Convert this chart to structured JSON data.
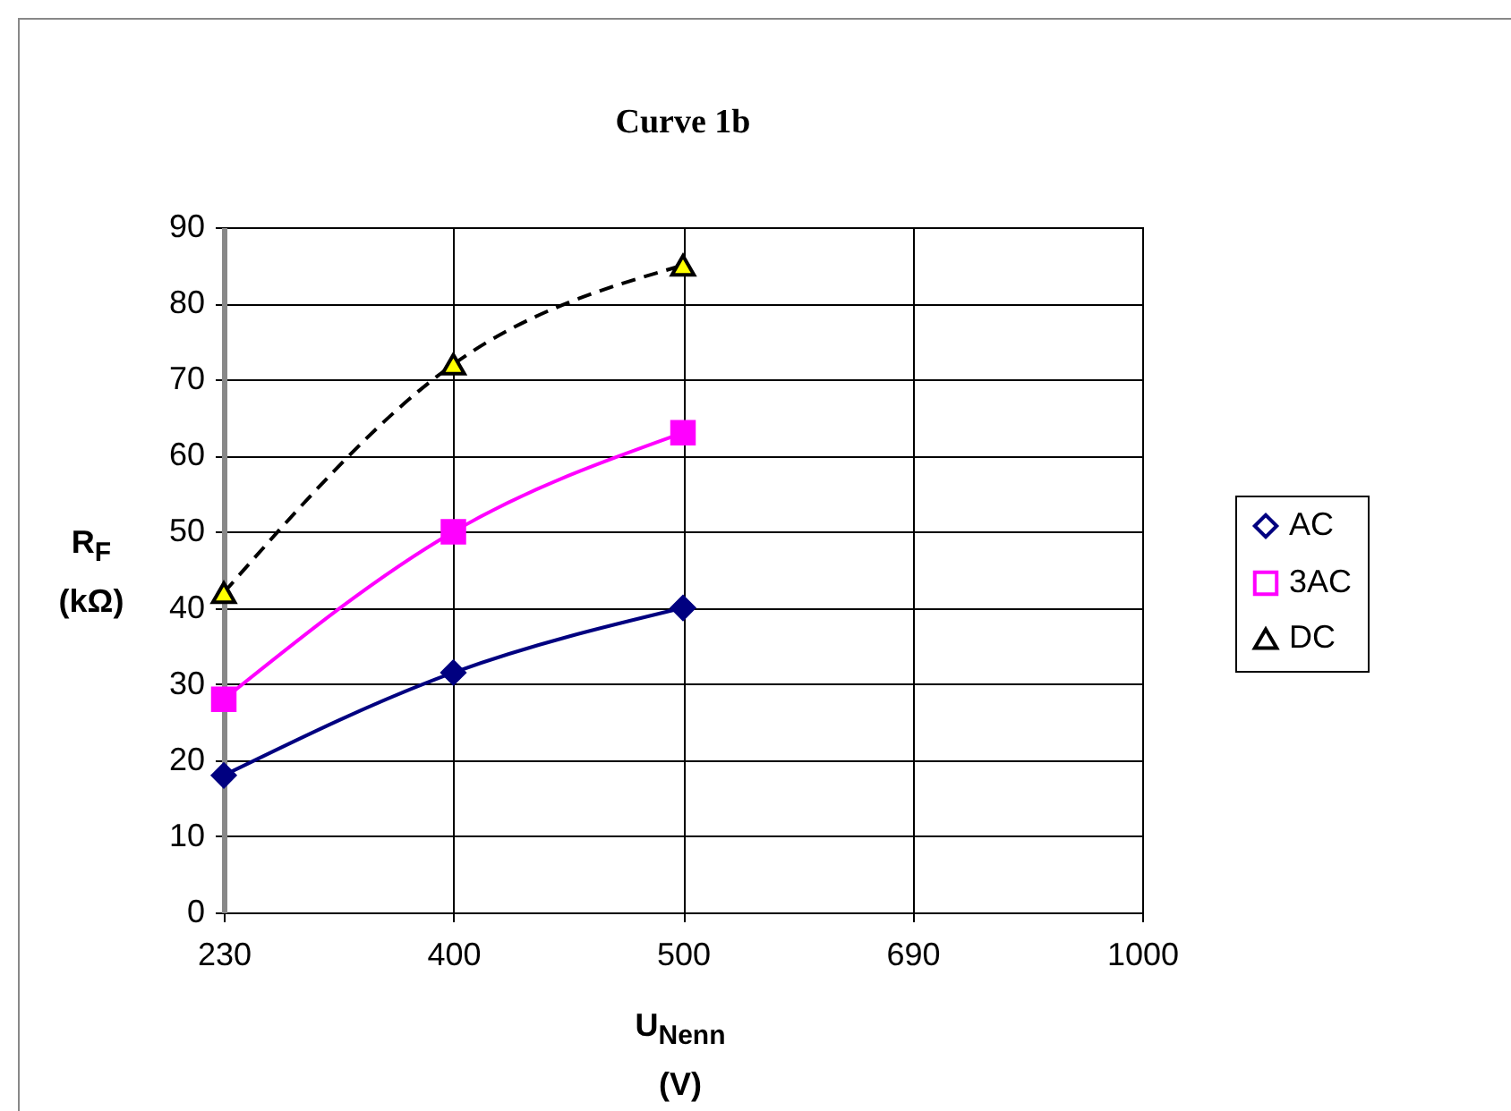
{
  "chart_data": {
    "type": "line",
    "title": "Curve 1b",
    "xlabel": "U$_{Nenn}$ (V)",
    "ylabel": "R$_{F}$ (kΩ)",
    "categories": [
      "230",
      "400",
      "500",
      "690",
      "1000"
    ],
    "ylim": [
      0,
      90
    ],
    "yticks": [
      0,
      10,
      20,
      30,
      40,
      50,
      60,
      70,
      80,
      90
    ],
    "grid": true,
    "legend": "right",
    "series": [
      {
        "name": "AC",
        "color": "#000080",
        "marker": "diamond",
        "line_style": "solid",
        "values": [
          18,
          31.5,
          40,
          null,
          null
        ]
      },
      {
        "name": "3AC",
        "color": "#ff00ff",
        "marker": "square",
        "line_style": "solid",
        "values": [
          28,
          50,
          63,
          null,
          null
        ]
      },
      {
        "name": "DC",
        "color": "#000000",
        "colors": [
          "#ffff00",
          "#ffff00",
          "#ffff00",
          null,
          null
        ],
        "marker": "triangle",
        "line_style": "dashed",
        "values": [
          42,
          72,
          85,
          null,
          null
        ]
      }
    ]
  }
}
